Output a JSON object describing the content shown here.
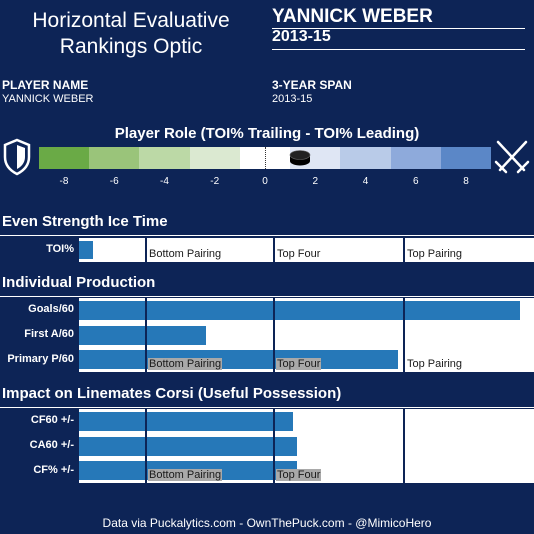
{
  "header": {
    "title_line1": "Horizontal Evaluative",
    "title_line2": "Rankings Optic",
    "player": "YANNICK WEBER",
    "season": "2013-15"
  },
  "info": {
    "player_name_label": "PLAYER NAME",
    "player_name_value": "YANNICK WEBER",
    "span_label": "3-YEAR SPAN",
    "span_value": "2013-15"
  },
  "role": {
    "title": "Player Role (TOI% Trailing - TOI% Leading)",
    "ticks": [
      "-8",
      "-6",
      "-4",
      "-2",
      "0",
      "2",
      "4",
      "6",
      "8"
    ],
    "colors": [
      "#6aaa46",
      "#9ac47a",
      "#bcd9a6",
      "#dbe9d1",
      "#ffffff",
      "#dfe6f4",
      "#b9cbe8",
      "#8eaadb",
      "#5b87c7"
    ],
    "puck_value": 1.4,
    "left_icon": "shield-icon",
    "right_icon": "crossed-swords-icon"
  },
  "sections": {
    "even_strength": "Even Strength Ice Time",
    "production": "Individual Production",
    "impact": "Impact on Linemates Corsi (Useful Possession)"
  },
  "tiers": {
    "bottom": "Bottom Pairing",
    "top_four": "Top Four",
    "top": "Top Pairing"
  },
  "chart_data": [
    {
      "type": "bar",
      "title": "Even Strength Ice Time",
      "categories": [
        "TOI%"
      ],
      "values": [
        0.03
      ]
    },
    {
      "type": "bar",
      "title": "Individual Production",
      "categories": [
        "Goals/60",
        "First A/60",
        "Primary P/60"
      ],
      "values": [
        0.97,
        0.28,
        0.7
      ]
    },
    {
      "type": "bar",
      "title": "Impact on Linemates Corsi (Useful Possession)",
      "categories": [
        "CF60 +/-",
        "CA60 +/-",
        "CF% +/-"
      ],
      "values": [
        0.47,
        0.48,
        0.48
      ]
    }
  ],
  "footer": "Data via Puckalytics.com - OwnThePuck.com - @MimicoHero"
}
